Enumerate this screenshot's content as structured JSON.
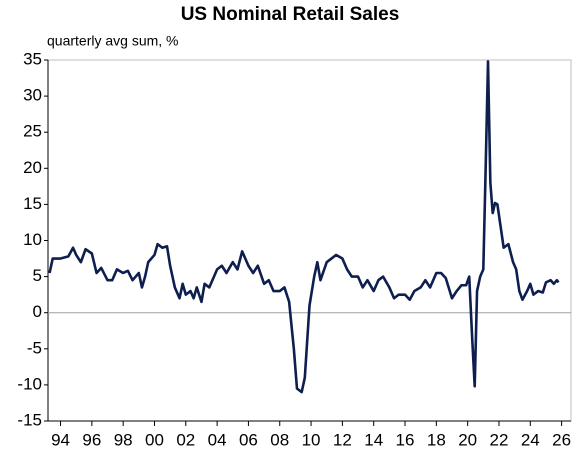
{
  "chart_data": {
    "type": "line",
    "title": "US Nominal Retail Sales",
    "subtitle": "quarterly avg sum, %",
    "x": [
      1993.3,
      1993.5,
      1994,
      1994.5,
      1994.8,
      1995,
      1995.3,
      1995.6,
      1996,
      1996.3,
      1996.6,
      1997,
      1997.3,
      1997.6,
      1998,
      1998.3,
      1998.6,
      1999,
      1999.2,
      1999.4,
      1999.6,
      2000,
      2000.2,
      2000.5,
      2000.8,
      2001,
      2001.3,
      2001.6,
      2001.8,
      2002,
      2002.3,
      2002.5,
      2002.7,
      2003,
      2003.2,
      2003.5,
      2003.8,
      2004,
      2004.3,
      2004.6,
      2005,
      2005.3,
      2005.6,
      2006,
      2006.3,
      2006.6,
      2007,
      2007.3,
      2007.6,
      2008,
      2008.3,
      2008.6,
      2008.9,
      2009.1,
      2009.4,
      2009.6,
      2009.9,
      2010.2,
      2010.4,
      2010.6,
      2011,
      2011.3,
      2011.6,
      2012,
      2012.3,
      2012.6,
      2013,
      2013.3,
      2013.6,
      2014,
      2014.3,
      2014.6,
      2015,
      2015.3,
      2015.6,
      2016,
      2016.3,
      2016.6,
      2017,
      2017.3,
      2017.6,
      2018,
      2018.3,
      2018.6,
      2019,
      2019.3,
      2019.6,
      2019.9,
      2020.1,
      2020.3,
      2020.45,
      2020.6,
      2020.8,
      2021,
      2021.15,
      2021.3,
      2021.45,
      2021.6,
      2021.75,
      2021.9,
      2022.1,
      2022.3,
      2022.6,
      2022.9,
      2023.1,
      2023.3,
      2023.5,
      2023.8,
      2024,
      2024.2,
      2024.5,
      2024.8,
      2025,
      2025.3,
      2025.5,
      2025.7,
      2025.8
    ],
    "series": [
      {
        "name": "US Nominal Retail Sales",
        "color": "#0e1f4f",
        "values": [
          5.5,
          7.5,
          7.5,
          7.8,
          9,
          8,
          7,
          8.8,
          8.2,
          5.5,
          6.2,
          4.5,
          4.5,
          6,
          5.5,
          5.8,
          4.5,
          5.5,
          3.5,
          5,
          7,
          8,
          9.5,
          9,
          9.2,
          6.5,
          3.5,
          2,
          4,
          2.5,
          3,
          2,
          3.5,
          1.5,
          4,
          3.5,
          5,
          6,
          6.5,
          5.5,
          7,
          6,
          8.5,
          6.5,
          5.5,
          6.5,
          4,
          4.5,
          3,
          3,
          3.5,
          1.5,
          -5,
          -10.5,
          -11,
          -9,
          1,
          5,
          7,
          4.5,
          7,
          7.5,
          8,
          7.5,
          6,
          5,
          5,
          3.5,
          4.5,
          3,
          4.5,
          5,
          3.5,
          2,
          2.5,
          2.5,
          1.8,
          3,
          3.5,
          4.5,
          3.5,
          5.5,
          5.5,
          4.8,
          2,
          3,
          3.8,
          3.8,
          5,
          -4,
          -10.2,
          3,
          5,
          6,
          20,
          34.8,
          18,
          13.8,
          15.2,
          15,
          12,
          9,
          9.5,
          7,
          6,
          3,
          1.8,
          3,
          4,
          2.5,
          3,
          2.8,
          4.2,
          4.5,
          4,
          4.5,
          4.2
        ]
      }
    ],
    "xlim": [
      1993.2,
      2026.6
    ],
    "xticks": [
      {
        "value": 1994,
        "label": "94"
      },
      {
        "value": 1996,
        "label": "96"
      },
      {
        "value": 1998,
        "label": "98"
      },
      {
        "value": 2000,
        "label": "00"
      },
      {
        "value": 2002,
        "label": "02"
      },
      {
        "value": 2004,
        "label": "04"
      },
      {
        "value": 2006,
        "label": "06"
      },
      {
        "value": 2008,
        "label": "08"
      },
      {
        "value": 2010,
        "label": "10"
      },
      {
        "value": 2012,
        "label": "12"
      },
      {
        "value": 2014,
        "label": "14"
      },
      {
        "value": 2016,
        "label": "16"
      },
      {
        "value": 2018,
        "label": "18"
      },
      {
        "value": 2020,
        "label": "20"
      },
      {
        "value": 2022,
        "label": "22"
      },
      {
        "value": 2024,
        "label": "24"
      },
      {
        "value": 2026,
        "label": "26"
      }
    ],
    "ylim": [
      -15,
      35
    ],
    "yticks": [
      -15,
      -10,
      -5,
      0,
      5,
      10,
      15,
      20,
      25,
      30,
      35
    ],
    "grid": false
  }
}
